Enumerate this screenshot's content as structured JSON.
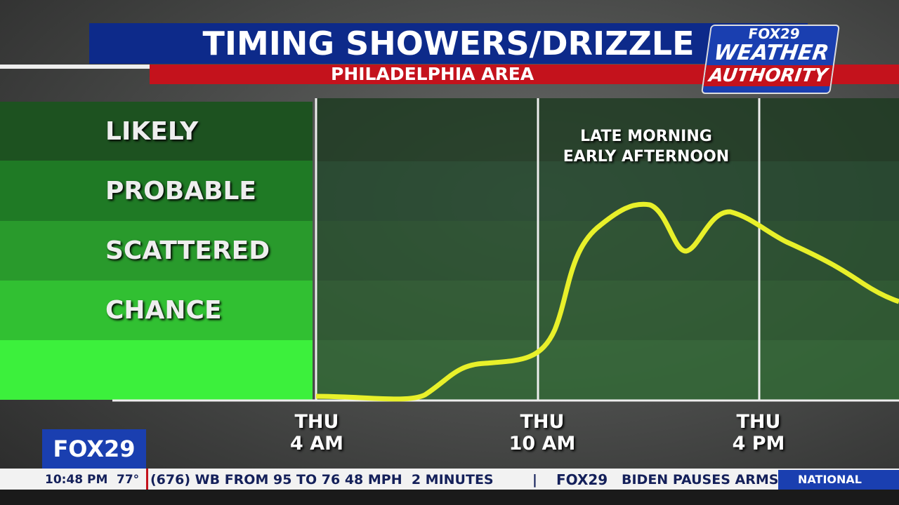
{
  "header": {
    "title": "TIMING SHOWERS/DRIZZLE",
    "subtitle": "PHILADELPHIA AREA"
  },
  "logo": {
    "network": "FOX29",
    "line1": "WEATHER",
    "line2": "AUTHORITY"
  },
  "levels": [
    "LIKELY",
    "PROBABLE",
    "SCATTERED",
    "CHANCE"
  ],
  "annotation": {
    "line1": "LATE MORNING",
    "line2": "EARLY AFTERNOON"
  },
  "times": [
    {
      "day": "THU",
      "time": "4 AM"
    },
    {
      "day": "THU",
      "time": "10 AM"
    },
    {
      "day": "THU",
      "time": "4 PM"
    }
  ],
  "bug": {
    "network": "FOX29",
    "clock": "10:48 PM",
    "temp": "77°"
  },
  "ticker": {
    "text1": "(676) WB FROM 95 TO 76 48 MPH  2 MINUTES",
    "sep": "|",
    "brand": "FOX29",
    "text2": "BIDEN PAUSES ARMS",
    "section": "NATIONAL"
  }
}
